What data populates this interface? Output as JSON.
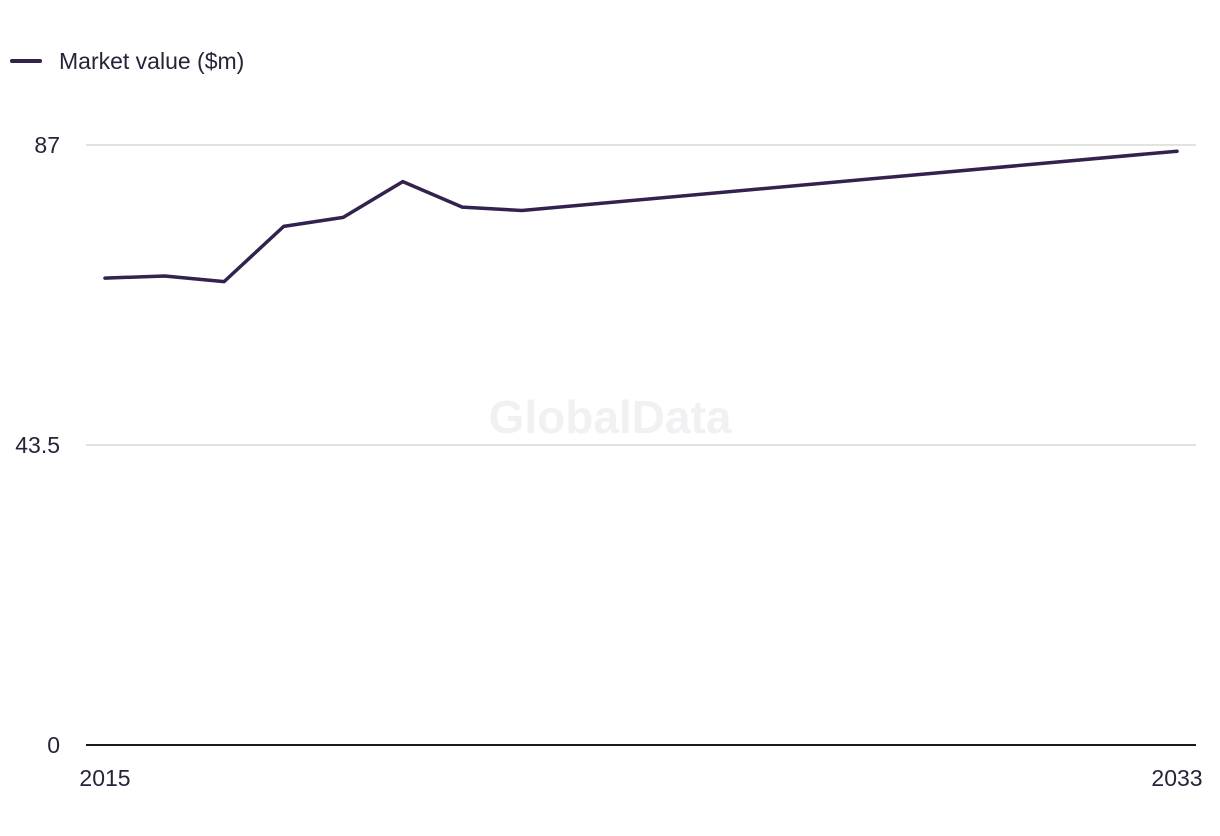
{
  "legend": {
    "label": "Market value ($m)"
  },
  "watermark": "GlobalData",
  "colors": {
    "series": "#33214e",
    "grid": "#d9d9d9",
    "axis": "#1a1a1a"
  },
  "chart_data": {
    "type": "line",
    "title": "",
    "xlabel": "",
    "ylabel": "",
    "x": [
      2015,
      2016,
      2017,
      2018,
      2019,
      2020,
      2021,
      2022,
      2033
    ],
    "x_tick_labels": [
      "2015",
      "2033"
    ],
    "xlim": [
      2015,
      2033
    ],
    "ylim": [
      0,
      87
    ],
    "y_ticks": [
      0,
      43.5,
      87
    ],
    "y_tick_labels": [
      "0",
      "43.5",
      "87"
    ],
    "grid": true,
    "legend_position": "top-left",
    "series": [
      {
        "name": "Market value ($m)",
        "values": [
          67.7,
          68.0,
          67.2,
          75.2,
          76.5,
          81.7,
          78.0,
          77.5,
          86.1
        ]
      }
    ]
  }
}
